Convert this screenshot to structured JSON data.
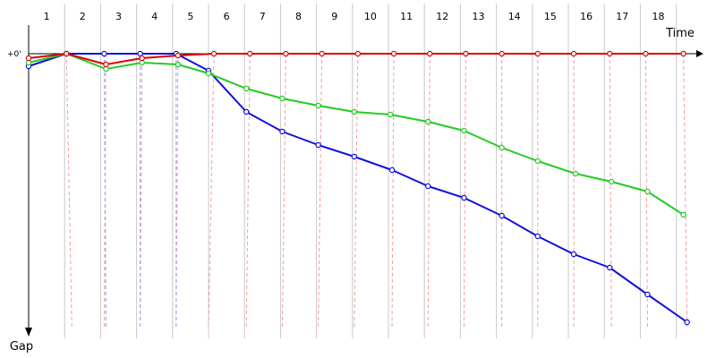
{
  "chart_data": {
    "type": "line",
    "xlabel": "Time",
    "ylabel": "Gap",
    "zero_label": "+0'",
    "laps": [
      "1",
      "2",
      "3",
      "4",
      "5",
      "6",
      "7",
      "8",
      "9",
      "10",
      "11",
      "12",
      "13",
      "14",
      "15",
      "16",
      "17",
      "18"
    ],
    "grid": true,
    "colors": {
      "axis": "#000000",
      "grid": "#c8c8c8",
      "crossing_red": "#ff9999",
      "crossing_blue": "#9999ff"
    },
    "series": [
      {
        "color": "#dd0000",
        "points": [
          [
            0.0,
            0.05
          ],
          [
            1.05,
            0.0
          ],
          [
            2.15,
            0.12
          ],
          [
            3.15,
            0.05
          ],
          [
            4.15,
            0.02
          ],
          [
            5.15,
            0.0
          ],
          [
            6.15,
            0.0
          ],
          [
            7.15,
            0.0
          ],
          [
            8.15,
            0.0
          ],
          [
            9.15,
            0.0
          ],
          [
            10.15,
            0.0
          ],
          [
            11.15,
            0.0
          ],
          [
            12.15,
            0.0
          ],
          [
            13.15,
            0.0
          ],
          [
            14.15,
            0.0
          ],
          [
            15.15,
            0.0
          ],
          [
            16.15,
            0.0
          ],
          [
            17.15,
            0.0
          ],
          [
            18.2,
            0.0
          ]
        ]
      },
      {
        "color": "#22cc22",
        "points": [
          [
            0.0,
            0.1
          ],
          [
            1.05,
            0.0
          ],
          [
            2.15,
            0.17
          ],
          [
            3.15,
            0.1
          ],
          [
            4.15,
            0.12
          ],
          [
            5.0,
            0.22
          ],
          [
            6.05,
            0.39
          ],
          [
            7.05,
            0.5
          ],
          [
            8.05,
            0.58
          ],
          [
            9.05,
            0.65
          ],
          [
            10.05,
            0.68
          ],
          [
            11.1,
            0.76
          ],
          [
            12.1,
            0.86
          ],
          [
            13.15,
            1.05
          ],
          [
            14.15,
            1.2
          ],
          [
            15.2,
            1.34
          ],
          [
            16.2,
            1.43
          ],
          [
            17.2,
            1.54
          ],
          [
            18.2,
            1.8
          ]
        ]
      },
      {
        "color": "#1111dd",
        "points": [
          [
            0.0,
            0.14
          ],
          [
            1.05,
            0.0
          ],
          [
            2.1,
            0.0
          ],
          [
            3.1,
            0.0
          ],
          [
            4.1,
            0.0
          ],
          [
            5.0,
            0.19
          ],
          [
            6.05,
            0.65
          ],
          [
            7.05,
            0.87
          ],
          [
            8.05,
            1.02
          ],
          [
            9.05,
            1.15
          ],
          [
            10.1,
            1.3
          ],
          [
            11.1,
            1.48
          ],
          [
            12.1,
            1.61
          ],
          [
            13.15,
            1.81
          ],
          [
            14.15,
            2.04
          ],
          [
            15.15,
            2.24
          ],
          [
            16.15,
            2.39
          ],
          [
            17.2,
            2.69
          ],
          [
            18.3,
            3.0
          ]
        ]
      }
    ],
    "crossings": [
      {
        "color": "red",
        "lines": [
          [
            1.05,
            1.2
          ],
          [
            2.15,
            2.1
          ],
          [
            3.15,
            3.1
          ],
          [
            4.15,
            4.1
          ],
          [
            5.15,
            5.0
          ],
          [
            6.15,
            6.05
          ],
          [
            7.15,
            7.05
          ],
          [
            8.15,
            8.05
          ],
          [
            9.15,
            9.05
          ],
          [
            10.15,
            10.1
          ],
          [
            11.15,
            11.1
          ],
          [
            12.15,
            12.1
          ],
          [
            13.15,
            13.15
          ],
          [
            14.15,
            14.15
          ],
          [
            15.15,
            15.15
          ],
          [
            16.15,
            16.2
          ],
          [
            17.15,
            17.2
          ],
          [
            18.2,
            18.3
          ]
        ]
      },
      {
        "color": "blue",
        "lines": [
          [
            2.1,
            2.15
          ],
          [
            3.1,
            3.1
          ],
          [
            4.1,
            4.1
          ]
        ]
      }
    ]
  }
}
